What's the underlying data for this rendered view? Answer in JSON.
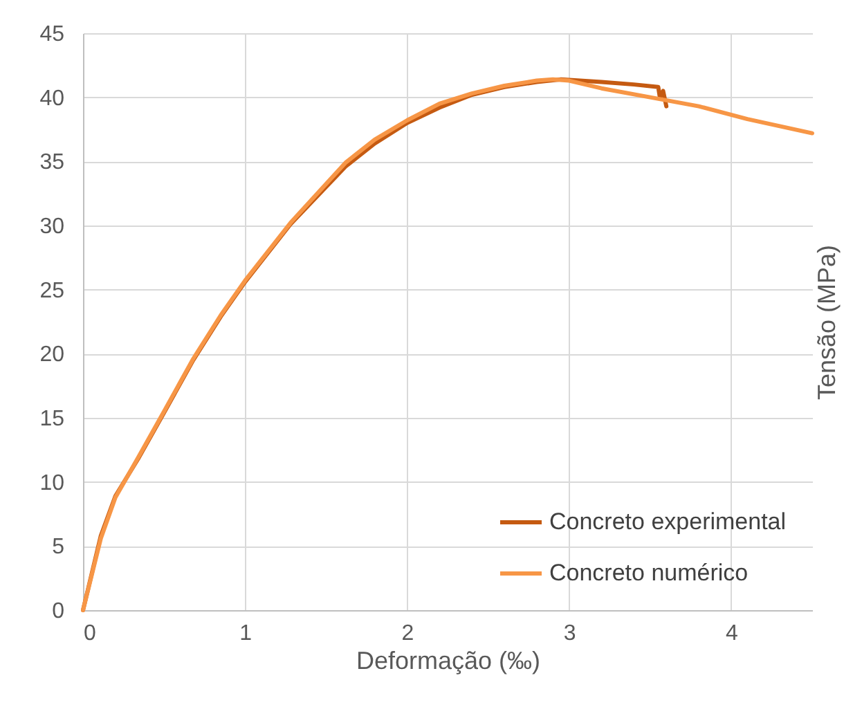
{
  "chart_data": {
    "type": "line",
    "xlabel": "Deformação (‰)",
    "ylabel": "Tensão (MPa)",
    "xlim": [
      0,
      4.5
    ],
    "xticks": [
      0,
      1,
      2,
      3,
      4
    ],
    "ylim": [
      0,
      45
    ],
    "yticks": [
      0,
      5,
      10,
      15,
      20,
      25,
      30,
      35,
      40,
      45
    ],
    "grid": true,
    "legend": "bottom right",
    "line_style": "solid",
    "marker": "none",
    "series": [
      {
        "name": "Concreto experimental",
        "color": "#c55a11",
        "x": [
          0,
          0.11,
          0.2,
          0.34,
          0.5,
          0.68,
          0.85,
          1.0,
          1.28,
          1.62,
          1.8,
          2.0,
          2.2,
          2.4,
          2.6,
          2.8,
          2.95,
          3.2,
          3.4,
          3.55,
          3.56,
          3.58,
          3.6
        ],
        "values": [
          0,
          5.8,
          8.9,
          11.8,
          15.4,
          19.5,
          22.9,
          25.6,
          30.1,
          34.6,
          36.4,
          38.0,
          39.2,
          40.2,
          40.8,
          41.2,
          41.4,
          41.2,
          41.0,
          40.8,
          40.0,
          40.5,
          39.3
        ]
      },
      {
        "name": "Concreto numérico",
        "color": "#f79646",
        "x": [
          0,
          0.11,
          0.2,
          0.34,
          0.5,
          0.68,
          0.85,
          1.0,
          1.28,
          1.62,
          1.8,
          2.0,
          2.2,
          2.4,
          2.6,
          2.8,
          2.9,
          3.0,
          3.2,
          3.5,
          3.8,
          4.1,
          4.5
        ],
        "values": [
          0,
          5.6,
          8.8,
          11.9,
          15.5,
          19.6,
          23.0,
          25.7,
          30.2,
          34.9,
          36.7,
          38.2,
          39.5,
          40.3,
          40.9,
          41.3,
          41.4,
          41.3,
          40.7,
          40.0,
          39.3,
          38.3,
          37.2
        ]
      }
    ]
  }
}
